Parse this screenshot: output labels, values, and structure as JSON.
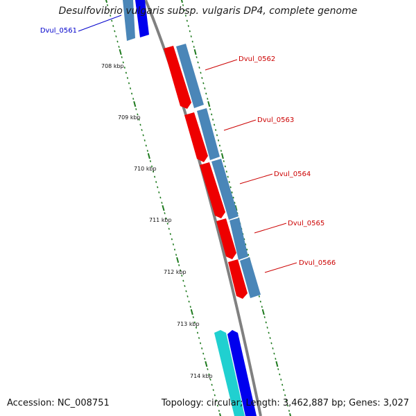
{
  "title": "Desulfovibrio vulgaris subsp. vulgaris DP4, complete genome",
  "footer": {
    "accession": "Accession: NC_008751",
    "summary": "Topology: circular; Length: 3,462,887 bp; Genes: 3,027"
  },
  "colors": {
    "backbone": "#808080",
    "tick": "#1e7a1e",
    "gene_label_red": "#cc0000",
    "gene_label_blue": "#0000cc",
    "cds_blue": "#4a86b8",
    "gene_red": "#ee0000",
    "gene_blue": "#0000ee",
    "gene_cyan": "#20d0d0"
  },
  "scale_labels": [
    "708 kbp",
    "709 kbp",
    "710 kbp",
    "711 kbp",
    "712 kbp",
    "713 kbp",
    "714 kbp"
  ],
  "gene_labels": [
    "Dvul_0561",
    "Dvul_0562",
    "Dvul_0563",
    "Dvul_0564",
    "Dvul_0565",
    "Dvul_0566"
  ]
}
